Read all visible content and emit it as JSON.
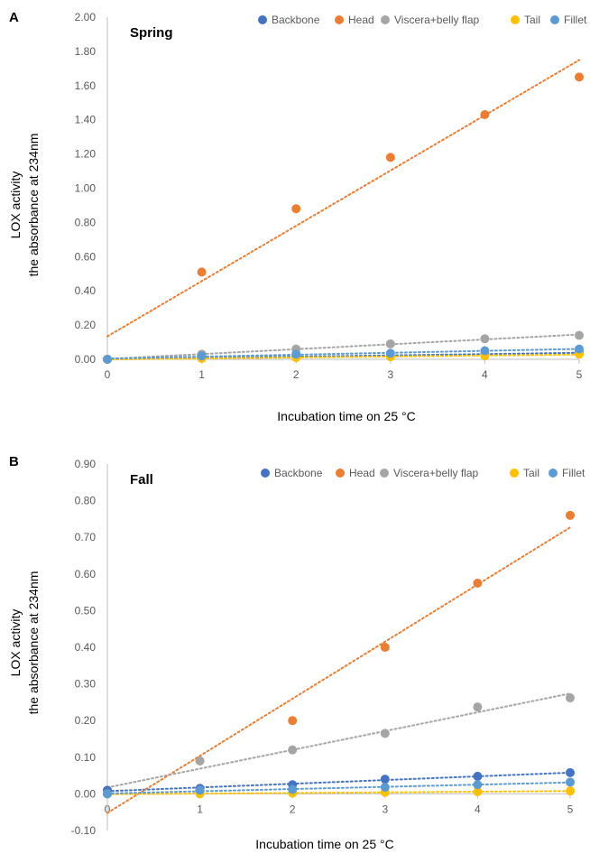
{
  "chart_data": [
    {
      "type": "scatter",
      "panel_label": "A",
      "title": "Spring",
      "xlabel": "Incubation time on 25 °C",
      "ylabel_lines": [
        "LOX activity",
        "the absorbance at 234nm"
      ],
      "xlim": [
        0,
        5
      ],
      "ylim": [
        0,
        2.0
      ],
      "x_ticks": [
        0,
        1,
        2,
        3,
        4,
        5
      ],
      "y_ticks": [
        0,
        0.2,
        0.4,
        0.6,
        0.8,
        1.0,
        1.2,
        1.4,
        1.6,
        1.8,
        2.0
      ],
      "tick_labels_x": [
        "0",
        "1",
        "2",
        "3",
        "4",
        "5"
      ],
      "tick_labels_y": [
        "0.00",
        "0.20",
        "0.40",
        "0.60",
        "0.80",
        "1.00",
        "1.20",
        "1.40",
        "1.60",
        "1.80",
        "2.00"
      ],
      "grid": false,
      "legend_position": "top",
      "trendline": "linear, dotted",
      "x": [
        0,
        1,
        2,
        3,
        4,
        5
      ],
      "series": [
        {
          "name": "Backbone",
          "color": "#4472C4",
          "values": [
            0.0,
            0.01,
            0.015,
            0.02,
            0.03,
            0.04
          ]
        },
        {
          "name": "Head",
          "color": "#ED7D31",
          "values": [
            0.0,
            0.51,
            0.88,
            1.18,
            1.43,
            1.65
          ]
        },
        {
          "name": "Viscera+belly flap",
          "color": "#A5A5A5",
          "values": [
            0.0,
            0.03,
            0.06,
            0.09,
            0.12,
            0.14
          ]
        },
        {
          "name": "Tail",
          "color": "#FFC000",
          "values": [
            0.0,
            0.005,
            0.01,
            0.015,
            0.02,
            0.03
          ]
        },
        {
          "name": "Fillet",
          "color": "#5B9BD5",
          "values": [
            0.0,
            0.02,
            0.03,
            0.035,
            0.05,
            0.06
          ]
        }
      ]
    },
    {
      "type": "scatter",
      "panel_label": "B",
      "title": "Fall",
      "xlabel": "Incubation time on 25 °C",
      "ylabel_lines": [
        "LOX activity",
        "the absorbance at 234nm"
      ],
      "xlim": [
        0,
        5
      ],
      "ylim": [
        -0.1,
        0.9
      ],
      "x_ticks": [
        0,
        1,
        2,
        3,
        4,
        5
      ],
      "y_ticks": [
        -0.1,
        0,
        0.1,
        0.2,
        0.3,
        0.4,
        0.5,
        0.6,
        0.7,
        0.8,
        0.9
      ],
      "tick_labels_x": [
        "0",
        "1",
        "2",
        "3",
        "4",
        "5"
      ],
      "tick_labels_y": [
        "-0.10",
        "0.00",
        "0.10",
        "0.20",
        "0.30",
        "0.40",
        "0.50",
        "0.60",
        "0.70",
        "0.80",
        "0.90"
      ],
      "grid": false,
      "legend_position": "top",
      "trendline": "linear, dotted",
      "x": [
        0,
        1,
        2,
        3,
        4,
        5
      ],
      "series": [
        {
          "name": "Backbone",
          "color": "#4472C4",
          "values": [
            0.01,
            0.015,
            0.025,
            0.04,
            0.048,
            0.058
          ]
        },
        {
          "name": "Head",
          "color": "#ED7D31",
          "values": [
            0.0,
            0.09,
            0.2,
            0.4,
            0.575,
            0.76
          ]
        },
        {
          "name": "Viscera+belly flap",
          "color": "#A5A5A5",
          "values": [
            0.0,
            0.09,
            0.12,
            0.165,
            0.237,
            0.262
          ]
        },
        {
          "name": "Tail",
          "color": "#FFC000",
          "values": [
            0.0,
            0.0,
            0.002,
            0.004,
            0.006,
            0.008
          ]
        },
        {
          "name": "Fillet",
          "color": "#5B9BD5",
          "values": [
            0.0,
            0.01,
            0.012,
            0.018,
            0.025,
            0.032
          ]
        }
      ]
    }
  ]
}
